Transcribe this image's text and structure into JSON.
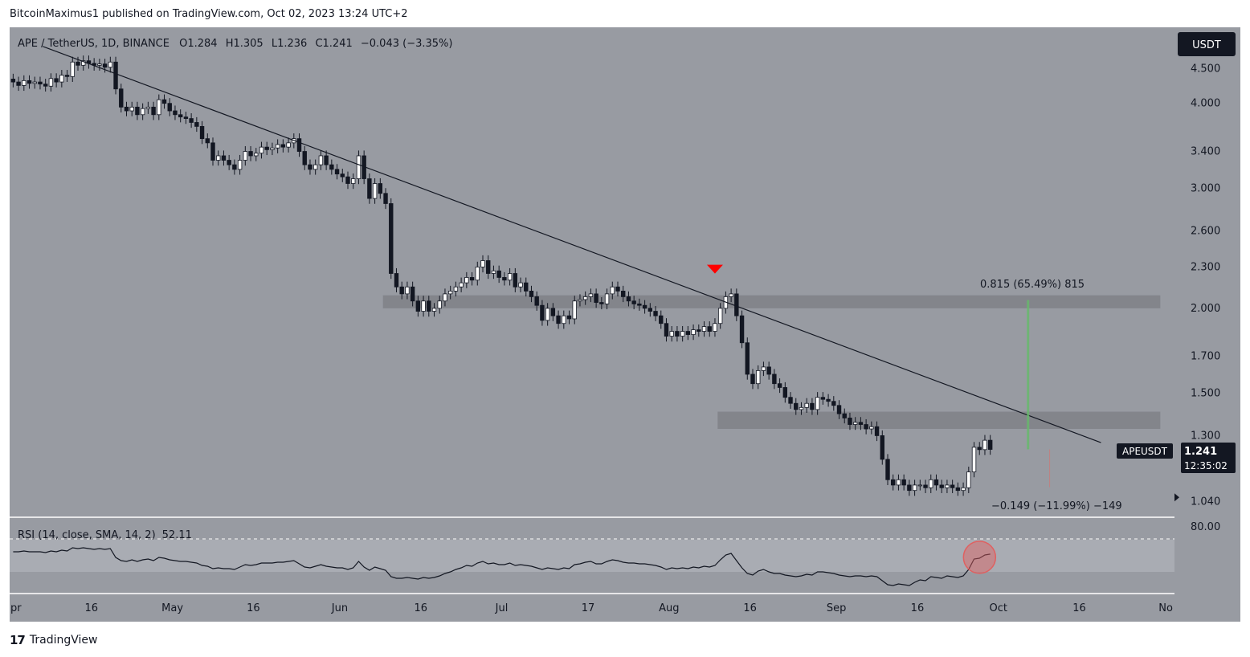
{
  "header": {
    "published": "BitcoinMaximus1 published on TradingView.com, Oct 02, 2023 13:24 UTC+2"
  },
  "footer": {
    "logo_mark": "17",
    "brand": "TradingView"
  },
  "legend": {
    "symbol": "APE / TetherUS, 1D, BINANCE",
    "o_label": "O",
    "o": "1.284",
    "h_label": "H",
    "h": "1.305",
    "l_label": "L",
    "l": "1.236",
    "c_label": "C",
    "c": "1.241",
    "change": "−0.043 (−3.35%)"
  },
  "currency_button": "USDT",
  "price_tag": {
    "symbol": "APEUSDT",
    "price": "1.241",
    "countdown": "12:35:02"
  },
  "measure_up": {
    "text": "0.815 (65.49%) 815",
    "from": 1.241,
    "to": 2.056
  },
  "measure_down": {
    "text": "−0.149 (−11.99%) −149",
    "from": 1.241,
    "to": 1.092
  },
  "rsi_legend": {
    "text": "RSI (14, close, SMA, 14, 2)",
    "value": "52.11",
    "axis_label": "80.00"
  },
  "colors": {
    "plot_bg": "#989ba2",
    "up_candle": "#ffffff",
    "down_candle": "#131722",
    "zone": "#7f8187",
    "green": "#66bb6a",
    "red_marker": "#ff0000",
    "rsi_circle": "#e06060"
  },
  "chart_data": {
    "type": "candlestick",
    "title": "APE / TetherUS, 1D, BINANCE",
    "y_scale": "log",
    "ylim": [
      1.0,
      4.9
    ],
    "y_ticks": [
      "4.500",
      "4.000",
      "3.400",
      "3.000",
      "2.600",
      "2.300",
      "2.000",
      "1.700",
      "1.500",
      "1.300",
      "1.040"
    ],
    "y_tick_values": [
      4.5,
      4.0,
      3.4,
      3.0,
      2.6,
      2.3,
      2.0,
      1.7,
      1.5,
      1.3,
      1.04
    ],
    "x_ticks": [
      {
        "label": "pr",
        "day": 0
      },
      {
        "label": "16",
        "day": 15
      },
      {
        "label": "May",
        "day": 30
      },
      {
        "label": "16",
        "day": 45
      },
      {
        "label": "Jun",
        "day": 61
      },
      {
        "label": "16",
        "day": 76
      },
      {
        "label": "Jul",
        "day": 91
      },
      {
        "label": "17",
        "day": 107
      },
      {
        "label": "Aug",
        "day": 122
      },
      {
        "label": "16",
        "day": 137
      },
      {
        "label": "Sep",
        "day": 153
      },
      {
        "label": "16",
        "day": 168
      },
      {
        "label": "Oct",
        "day": 183
      },
      {
        "label": "16",
        "day": 198
      },
      {
        "label": "No",
        "day": 214
      }
    ],
    "closes": [
      4.3,
      4.25,
      4.32,
      4.28,
      4.3,
      4.27,
      4.24,
      4.35,
      4.3,
      4.4,
      4.38,
      4.6,
      4.55,
      4.62,
      4.58,
      4.55,
      4.57,
      4.52,
      4.6,
      4.2,
      3.95,
      3.9,
      3.95,
      3.85,
      3.93,
      3.95,
      3.85,
      4.05,
      4.0,
      3.9,
      3.85,
      3.82,
      3.8,
      3.75,
      3.7,
      3.55,
      3.5,
      3.3,
      3.35,
      3.3,
      3.25,
      3.2,
      3.3,
      3.4,
      3.35,
      3.38,
      3.45,
      3.42,
      3.44,
      3.48,
      3.45,
      3.5,
      3.55,
      3.4,
      3.25,
      3.2,
      3.25,
      3.35,
      3.25,
      3.2,
      3.15,
      3.12,
      3.05,
      3.1,
      3.35,
      3.1,
      2.9,
      3.05,
      2.95,
      2.85,
      2.25,
      2.15,
      2.1,
      2.15,
      2.05,
      1.98,
      2.05,
      1.98,
      2.0,
      2.05,
      2.1,
      2.12,
      2.15,
      2.18,
      2.22,
      2.2,
      2.3,
      2.35,
      2.25,
      2.27,
      2.22,
      2.2,
      2.25,
      2.15,
      2.18,
      2.12,
      2.08,
      2.02,
      1.92,
      2.0,
      1.95,
      1.9,
      1.95,
      1.93,
      2.05,
      2.06,
      2.08,
      2.1,
      2.04,
      2.03,
      2.1,
      2.15,
      2.12,
      2.08,
      2.05,
      2.03,
      2.02,
      2.0,
      1.98,
      1.95,
      1.9,
      1.82,
      1.85,
      1.82,
      1.85,
      1.83,
      1.86,
      1.85,
      1.88,
      1.85,
      1.9,
      2.0,
      2.08,
      2.1,
      1.95,
      1.78,
      1.6,
      1.55,
      1.62,
      1.64,
      1.6,
      1.55,
      1.53,
      1.48,
      1.45,
      1.42,
      1.43,
      1.45,
      1.42,
      1.48,
      1.47,
      1.46,
      1.44,
      1.4,
      1.38,
      1.35,
      1.36,
      1.35,
      1.33,
      1.34,
      1.3,
      1.2,
      1.12,
      1.1,
      1.12,
      1.1,
      1.08,
      1.1,
      1.1,
      1.09,
      1.12,
      1.1,
      1.09,
      1.1,
      1.09,
      1.08,
      1.09,
      1.15,
      1.25,
      1.24,
      1.28,
      1.241
    ],
    "rsi": {
      "ylim": [
        10,
        90
      ],
      "band": [
        30,
        70
      ],
      "mid_line": 50,
      "values": [
        55,
        55,
        56,
        55,
        55,
        55,
        54,
        56,
        55,
        57,
        56,
        60,
        59,
        60,
        59,
        58,
        59,
        58,
        59,
        48,
        44,
        43,
        45,
        43,
        45,
        46,
        44,
        48,
        47,
        45,
        44,
        43,
        43,
        42,
        41,
        38,
        37,
        34,
        35,
        34,
        34,
        33,
        36,
        39,
        38,
        39,
        41,
        41,
        41,
        42,
        42,
        43,
        44,
        40,
        36,
        35,
        37,
        39,
        37,
        36,
        35,
        35,
        33,
        35,
        43,
        36,
        32,
        36,
        34,
        32,
        24,
        22,
        22,
        23,
        22,
        21,
        23,
        22,
        23,
        25,
        28,
        30,
        33,
        35,
        38,
        37,
        41,
        43,
        40,
        41,
        39,
        39,
        41,
        38,
        39,
        38,
        37,
        35,
        33,
        35,
        34,
        33,
        35,
        34,
        39,
        40,
        42,
        43,
        40,
        40,
        43,
        45,
        44,
        42,
        41,
        41,
        40,
        40,
        39,
        38,
        36,
        33,
        35,
        34,
        35,
        34,
        36,
        35,
        37,
        36,
        38,
        45,
        51,
        53,
        44,
        35,
        28,
        26,
        31,
        33,
        30,
        28,
        28,
        26,
        25,
        24,
        25,
        27,
        26,
        30,
        30,
        29,
        28,
        26,
        25,
        24,
        25,
        25,
        24,
        25,
        24,
        19,
        14,
        13,
        15,
        14,
        13,
        17,
        20,
        19,
        24,
        23,
        22,
        25,
        24,
        23,
        25,
        33,
        46,
        47,
        51,
        52.11
      ]
    },
    "trendline": {
      "start": {
        "day": 6,
        "price": 4.85
      },
      "end": {
        "day": 202,
        "price": 1.27
      }
    },
    "resistance_zones": [
      {
        "from_day": 69,
        "to_day": 213,
        "low": 2.0,
        "high": 2.09
      },
      {
        "from_day": 131,
        "to_day": 213,
        "low": 1.33,
        "high": 1.41
      }
    ],
    "marker_day": 130
  }
}
